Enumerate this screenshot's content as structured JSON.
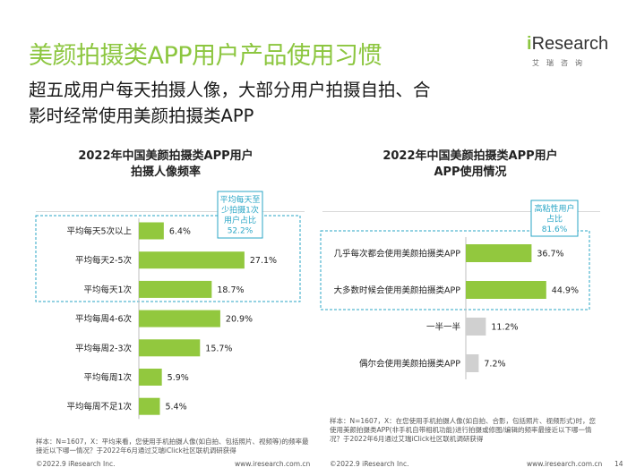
{
  "header": {
    "title": "美颜拍摄类APP用户产品使用习惯",
    "subtitle": "超五成用户每天拍摄人像，大部分用户拍摄自拍、合影时经常使用美颜拍摄类APP"
  },
  "logo": {
    "prefix": "i",
    "name": "Research",
    "cn": "艾瑞咨询"
  },
  "colors": {
    "accent": "#8cc63f",
    "bar_green": "#92c83e",
    "bar_gray": "#d0d0d0",
    "callout": "#2aa6c6"
  },
  "chart_data": [
    {
      "type": "bar",
      "orientation": "horizontal",
      "title": "2022年中国美颜拍摄类APP用户拍摄人像频率",
      "title_lines": [
        "2022年中国美颜拍摄类APP用户",
        "拍摄人像频率"
      ],
      "categories": [
        "平均每天5次以上",
        "平均每天2-5次",
        "平均每天1次",
        "平均每周4-6次",
        "平均每周2-3次",
        "平均每周1次",
        "平均每周不足1次"
      ],
      "values": [
        6.4,
        27.1,
        18.7,
        20.9,
        15.7,
        5.9,
        5.4
      ],
      "value_labels": [
        "6.4%",
        "27.1%",
        "18.7%",
        "20.9%",
        "15.7%",
        "5.9%",
        "5.4%"
      ],
      "callout": {
        "lines": [
          "平均每天至",
          "少拍摄1次",
          "用户占比",
          "52.2%"
        ],
        "value": 52.2
      },
      "note": "样本：N=1607，X：平均来看，您使用手机拍摄人像(如自拍、包括照片、视频等)的频率最接近以下哪一情况？于2022年6月通过艾瑞iClick社区联机调研获得"
    },
    {
      "type": "bar",
      "orientation": "horizontal",
      "title": "2022年中国美颜拍摄类APP用户APP使用情况",
      "title_lines": [
        "2022年中国美颜拍摄类APP用户",
        "APP使用情况"
      ],
      "categories": [
        "几乎每次都会使用美颜拍摄类APP",
        "大多数时候会使用美颜拍摄类APP",
        "一半一半",
        "偶尔会使用美颜拍摄类APP"
      ],
      "values": [
        36.7,
        44.9,
        11.2,
        7.2
      ],
      "value_labels": [
        "36.7%",
        "44.9%",
        "11.2%",
        "7.2%"
      ],
      "callout": {
        "lines": [
          "高粘性用户",
          "占比",
          "81.6%"
        ],
        "value": 81.6
      },
      "note": "样本：N=1607，X：在您使用手机拍摄人像(如自拍、合影，包括照片、视频形式)时，您使用美颜拍摄类APP(非手机自带相机功能)进行拍摄或修图/编辑的频率最接近以下哪一情况？于2022年6月通过艾瑞iClick社区联机调研获得"
    }
  ],
  "footer": {
    "left_copyright": "©2022.9 iResearch Inc.",
    "left_url": "www.iresearch.com.cn",
    "right_copyright": "©2022.9 iResearch Inc.",
    "right_url": "www.iresearch.com.cn",
    "page_number": "14"
  }
}
